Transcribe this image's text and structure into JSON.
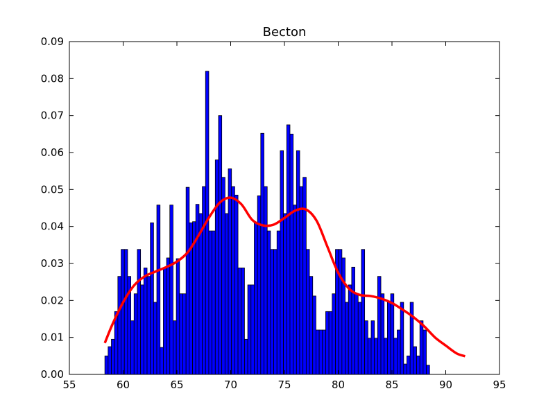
{
  "chart_data": {
    "type": "bar",
    "title": "Becton",
    "xlabel": "",
    "ylabel": "",
    "xlim": [
      55,
      95
    ],
    "ylim": [
      0,
      0.09
    ],
    "xticks": [
      "55",
      "60",
      "65",
      "70",
      "75",
      "80",
      "85",
      "90",
      "95"
    ],
    "yticks": [
      "0.00",
      "0.01",
      "0.02",
      "0.03",
      "0.04",
      "0.05",
      "0.06",
      "0.07",
      "0.08",
      "0.09"
    ],
    "grid": false,
    "bar_color": "#0000ff",
    "curve_color": "#ff0000",
    "bin_start": 58.3,
    "bin_width": 0.302,
    "values": [
      0.005,
      0.0075,
      0.0095,
      0.017,
      0.0265,
      0.0338,
      0.0338,
      0.0265,
      0.0145,
      0.0218,
      0.0338,
      0.0242,
      0.0288,
      0.0265,
      0.041,
      0.0195,
      0.0458,
      0.0073,
      0.0288,
      0.0315,
      0.0458,
      0.0145,
      0.0313,
      0.0218,
      0.0218,
      0.0506,
      0.041,
      0.0413,
      0.046,
      0.0435,
      0.0508,
      0.082,
      0.0388,
      0.0388,
      0.058,
      0.07,
      0.0533,
      0.0435,
      0.0556,
      0.0508,
      0.0485,
      0.0288,
      0.0288,
      0.0095,
      0.0242,
      0.0242,
      0.041,
      0.0483,
      0.0652,
      0.0508,
      0.0388,
      0.0338,
      0.0338,
      0.0388,
      0.0605,
      0.0435,
      0.0675,
      0.065,
      0.0458,
      0.0605,
      0.0508,
      0.0533,
      0.0338,
      0.0265,
      0.0212,
      0.012,
      0.012,
      0.012,
      0.017,
      0.017,
      0.0218,
      0.0338,
      0.0338,
      0.0315,
      0.0195,
      0.0242,
      0.029,
      0.0218,
      0.0195,
      0.0338,
      0.0145,
      0.0098,
      0.0145,
      0.0098,
      0.0265,
      0.0218,
      0.0098,
      0.0195,
      0.0218,
      0.0098,
      0.012,
      0.0195,
      0.0028,
      0.005,
      0.0195,
      0.0075,
      0.005,
      0.0145,
      0.012,
      0.0025
    ],
    "kde": {
      "x": [
        58.3,
        59,
        60,
        61,
        62,
        63,
        64,
        65,
        66,
        67,
        68,
        69,
        70,
        71,
        72,
        73,
        74,
        75,
        76,
        77,
        78,
        79,
        80,
        81,
        82,
        83,
        84,
        85,
        86,
        87,
        88,
        89,
        90,
        91,
        91.8
      ],
      "y": [
        0.0085,
        0.0135,
        0.0195,
        0.024,
        0.0265,
        0.0278,
        0.029,
        0.0305,
        0.033,
        0.0375,
        0.0425,
        0.0465,
        0.0478,
        0.046,
        0.0418,
        0.0403,
        0.0405,
        0.0423,
        0.0443,
        0.0446,
        0.0415,
        0.0345,
        0.0275,
        0.0232,
        0.0215,
        0.0212,
        0.0205,
        0.0193,
        0.0175,
        0.0155,
        0.013,
        0.01,
        0.0078,
        0.0057,
        0.0049
      ]
    }
  }
}
